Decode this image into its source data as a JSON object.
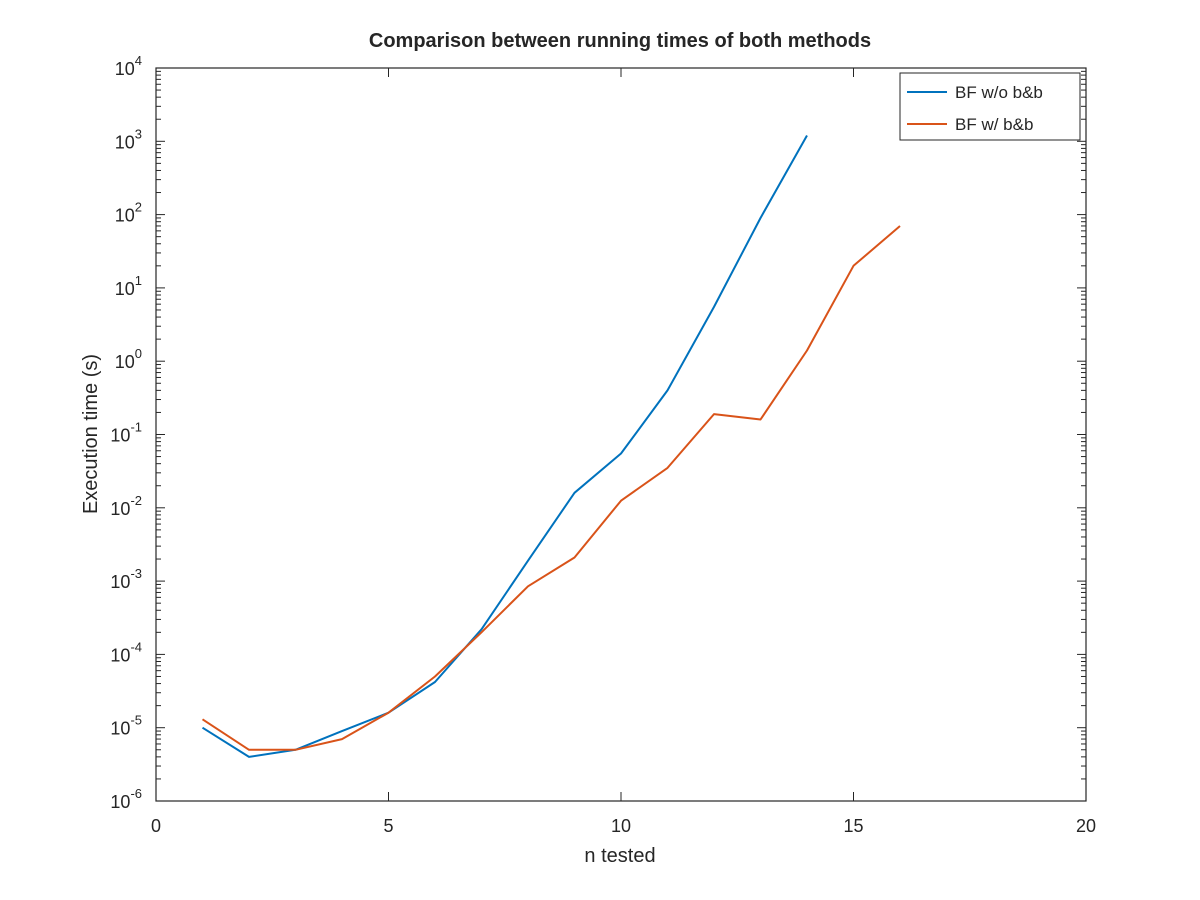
{
  "chart_data": {
    "type": "line",
    "title": "Comparison between running times of both methods",
    "xlabel": "n tested",
    "ylabel": "Execution time (s)",
    "xlim": [
      0,
      20
    ],
    "ylim": [
      1e-06,
      10000
    ],
    "yscale": "log",
    "grid": false,
    "legend_position": "top-right",
    "x_ticks": [
      "0",
      "5",
      "10",
      "15",
      "20"
    ],
    "y_ticks": [
      {
        "base": "10",
        "exp": "-6"
      },
      {
        "base": "10",
        "exp": "-5"
      },
      {
        "base": "10",
        "exp": "-4"
      },
      {
        "base": "10",
        "exp": "-3"
      },
      {
        "base": "10",
        "exp": "-2"
      },
      {
        "base": "10",
        "exp": "-1"
      },
      {
        "base": "10",
        "exp": "0"
      },
      {
        "base": "10",
        "exp": "1"
      },
      {
        "base": "10",
        "exp": "2"
      },
      {
        "base": "10",
        "exp": "3"
      },
      {
        "base": "10",
        "exp": "4"
      }
    ],
    "series": [
      {
        "name": "BF w/o b&b",
        "color": "#0072bd",
        "x": [
          1,
          2,
          3,
          4,
          5,
          6,
          7,
          8,
          9,
          10,
          11,
          12,
          13,
          14
        ],
        "y": [
          1e-05,
          4e-06,
          5e-06,
          9e-06,
          1.6e-05,
          4.2e-05,
          0.00022,
          0.0019,
          0.016,
          0.055,
          0.4,
          5.5,
          90,
          1200
        ]
      },
      {
        "name": "BF w/ b&b",
        "color": "#d95319",
        "x": [
          1,
          2,
          3,
          4,
          5,
          6,
          7,
          8,
          9,
          10,
          11,
          12,
          13,
          14,
          15,
          16
        ],
        "y": [
          1.3e-05,
          5e-06,
          5e-06,
          7e-06,
          1.6e-05,
          5e-05,
          0.0002,
          0.00085,
          0.0021,
          0.0125,
          0.035,
          0.19,
          0.16,
          1.4,
          20,
          70
        ]
      }
    ]
  }
}
